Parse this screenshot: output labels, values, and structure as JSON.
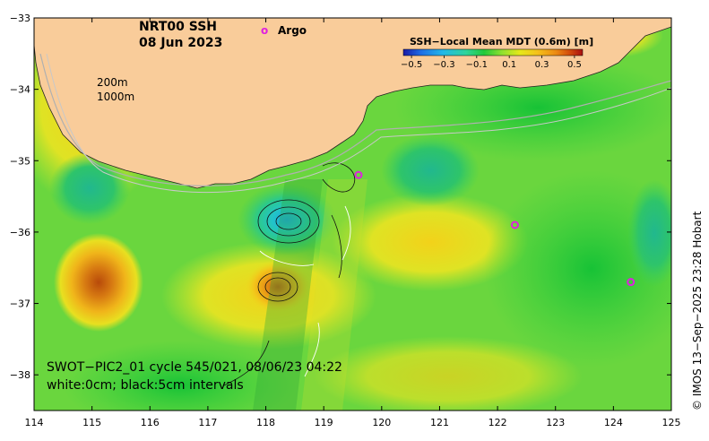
{
  "title_line1": "NRT00 SSH",
  "title_line2": "08 Jun 2023",
  "argo_label": "Argo",
  "argo_marker": "o",
  "isobath_labels": [
    "200m",
    "1000m"
  ],
  "colorbar": {
    "title": "SSH−Local Mean MDT (0.6m) [m]",
    "tick_labels": [
      "−0.5",
      "−0.3",
      "−0.1",
      "0.1",
      "0.3",
      "0.5"
    ],
    "tick_values": [
      -0.5,
      -0.3,
      -0.1,
      0.1,
      0.3,
      0.5
    ],
    "colors": [
      "#1a1aa6",
      "#1f6fe6",
      "#22b8e8",
      "#2fd49a",
      "#22c93a",
      "#8fe030",
      "#e6e81a",
      "#f5c01a",
      "#ec8a12",
      "#d14a0c",
      "#a80f10"
    ]
  },
  "axes": {
    "x_ticks": [
      "114",
      "115",
      "116",
      "117",
      "118",
      "119",
      "120",
      "121",
      "122",
      "123",
      "124",
      "125"
    ],
    "x_values": [
      114,
      115,
      116,
      117,
      118,
      119,
      120,
      121,
      122,
      123,
      124,
      125
    ],
    "y_ticks": [
      "−33",
      "−34",
      "−35",
      "−36",
      "−37",
      "−38"
    ],
    "y_values": [
      -33,
      -34,
      -35,
      -36,
      -37,
      -38
    ],
    "xlim": [
      114,
      125
    ],
    "ylim": [
      -38.5,
      -33
    ]
  },
  "swot_text_line1": "SWOT−PIC2_01 cycle 545/021, 08/06/23 04:22",
  "swot_text_line2": "white:0cm; black:5cm intervals",
  "credit": "© IMOS 13−Sep−2025 23:28 Hobart",
  "colors": {
    "land": "#f9cc9a",
    "sea_base": "#5fd84a",
    "argo": "#e020e0"
  },
  "argo_floats": [
    {
      "lon": 119.6,
      "lat": -35.2
    },
    {
      "lon": 122.3,
      "lat": -35.9
    },
    {
      "lon": 124.3,
      "lat": -36.7
    }
  ]
}
